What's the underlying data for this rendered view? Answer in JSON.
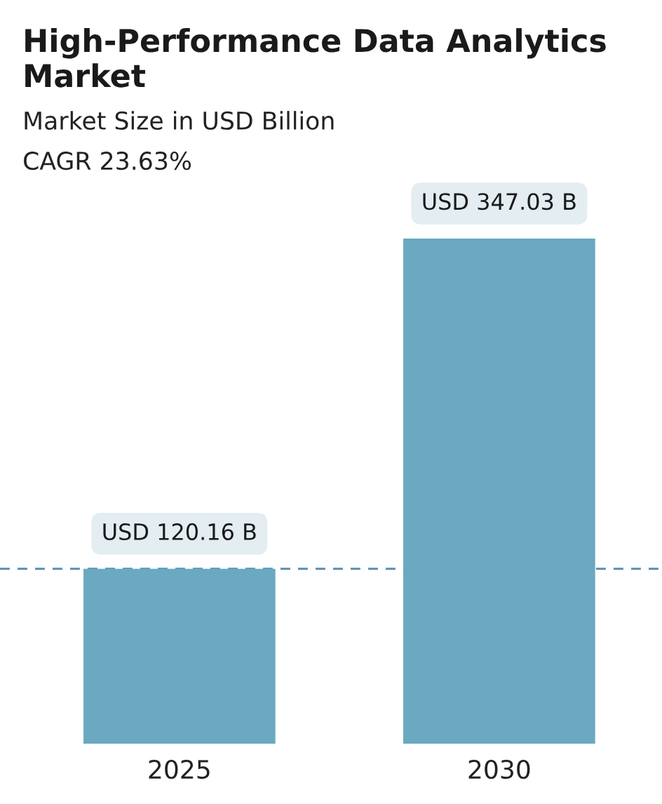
{
  "chart_data": {
    "type": "bar",
    "title": "High-Performance Data Analytics Market",
    "subtitle": "Market Size in USD Billion",
    "annotations": [
      "CAGR 23.63%"
    ],
    "categories": [
      "2025",
      "2030"
    ],
    "values": [
      120.16,
      347.03
    ],
    "color": "#6aa9c0",
    "value_labels": [
      "USD 120.16 B",
      "USD 347.03 B"
    ],
    "ref_lines": [
      {
        "axis": "y",
        "value": 120.16,
        "color": "#5a8db0",
        "line_style": "dashed"
      }
    ],
    "grid": false,
    "legend": false
  }
}
